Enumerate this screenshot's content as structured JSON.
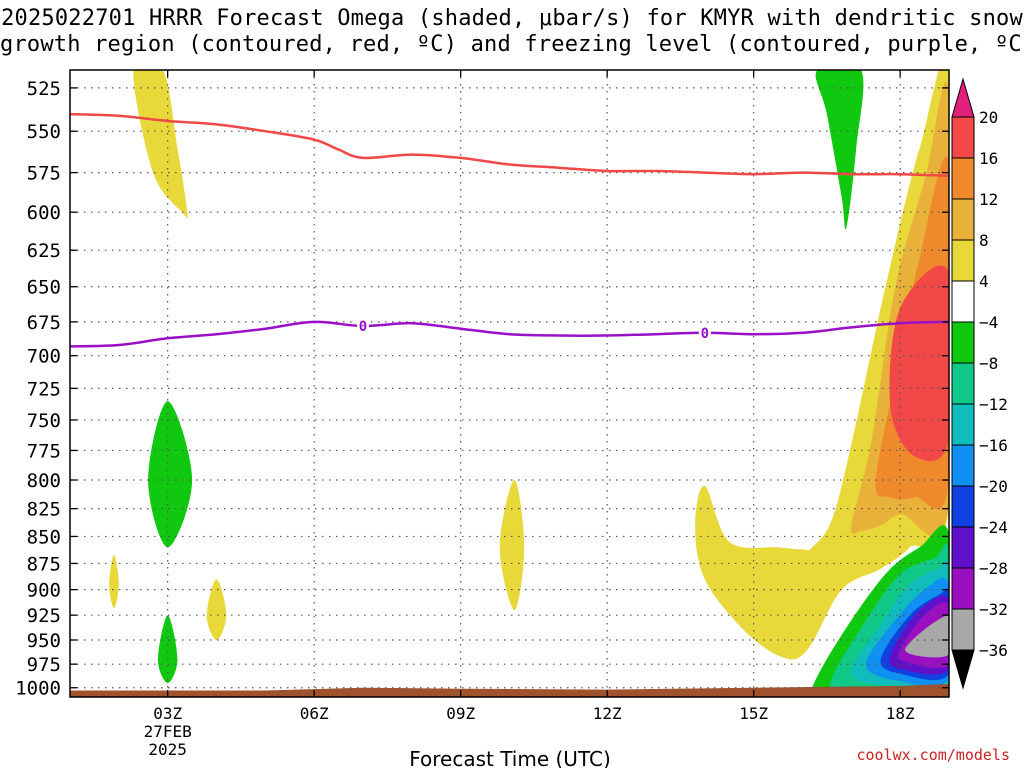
{
  "title_line1": "2025022701 HRRR Forecast Omega (shaded, μbar/s) for KMYR with dendritic snow",
  "title_line2": "growth region (contoured, red, ºC) and freezing level (contoured, purple, ºC)",
  "credit": "coolwx.com/models",
  "chart_data": {
    "type": "heatmap",
    "title": "2025022701 HRRR Forecast Omega (shaded, μbar/s) for KMYR with dendritic snow growth region (contoured, red, ºC) and freezing level (contoured, purple, ºC)",
    "xlabel": "Forecast Time (UTC)",
    "ylabel": "",
    "x_range_hours_utc": [
      1,
      19
    ],
    "y_range_hpa": [
      1010,
      515
    ],
    "y_scale": "log",
    "grid": true,
    "x_ticks": [
      {
        "hour": 3,
        "label": "03Z",
        "sub": [
          "27FEB",
          "2025"
        ]
      },
      {
        "hour": 6,
        "label": "06Z"
      },
      {
        "hour": 9,
        "label": "09Z"
      },
      {
        "hour": 12,
        "label": "12Z"
      },
      {
        "hour": 15,
        "label": "15Z"
      },
      {
        "hour": 18,
        "label": "18Z"
      }
    ],
    "y_ticks": [
      525,
      550,
      575,
      600,
      625,
      650,
      675,
      700,
      725,
      750,
      775,
      800,
      825,
      850,
      875,
      900,
      925,
      950,
      975,
      1000
    ],
    "colorbar": {
      "levels": [
        20,
        16,
        12,
        8,
        4,
        -4,
        -8,
        -12,
        -16,
        -20,
        -24,
        -28,
        -32,
        -36
      ],
      "bins": [
        {
          "range": ">20",
          "color": "#e0207a"
        },
        {
          "range": "16 to 20",
          "color": "#f24848"
        },
        {
          "range": "12 to 16",
          "color": "#ee8a2c"
        },
        {
          "range": "8 to 12",
          "color": "#e8b23a"
        },
        {
          "range": "4 to 8",
          "color": "#e8d83a"
        },
        {
          "range": "-4 to 4",
          "color": "#ffffff"
        },
        {
          "range": "-8 to -4",
          "color": "#10c810"
        },
        {
          "range": "-12 to -8",
          "color": "#10c888"
        },
        {
          "range": "-16 to -12",
          "color": "#10bcbc"
        },
        {
          "range": "-20 to -16",
          "color": "#1090f0"
        },
        {
          "range": "-24 to -20",
          "color": "#1040e0"
        },
        {
          "range": "-28 to -24",
          "color": "#6010c8"
        },
        {
          "range": "-32 to -28",
          "color": "#9a10c0"
        },
        {
          "range": "-36 to -32",
          "color": "#a8a8a8"
        },
        {
          "range": "<-36",
          "color": "#000000"
        }
      ]
    },
    "dgz_contour_top_red": {
      "color": "#f24848",
      "hours": [
        1,
        2,
        3,
        4,
        5,
        6,
        6.5,
        7,
        8,
        9,
        10,
        11,
        12,
        13,
        14,
        15,
        16,
        17,
        18,
        19
      ],
      "pressure_hpa": [
        540,
        541,
        544,
        546,
        550,
        555,
        561,
        566,
        564,
        566,
        570,
        572,
        574,
        574,
        575,
        576,
        575,
        576,
        576,
        577
      ]
    },
    "freezing_level_purple": {
      "color": "#9a10c8",
      "label": "0",
      "hours": [
        1,
        2,
        3,
        4,
        5,
        6,
        7,
        8,
        9,
        10,
        11,
        12,
        13,
        14,
        15,
        16,
        17,
        18,
        19
      ],
      "pressure_hpa": [
        693,
        692,
        687,
        684,
        680,
        675,
        678,
        676,
        680,
        684,
        685,
        685,
        684,
        683,
        684,
        683,
        679,
        676,
        675
      ]
    },
    "shaded_regions": [
      {
        "bin": "4 to 8",
        "hours": [
          2.3,
          2.9,
          3.2,
          3.4,
          3.3,
          2.7,
          2.3
        ],
        "pressure_hpa": [
          515,
          515,
          560,
          600,
          600,
          575,
          515
        ]
      },
      {
        "bin": "-8 to -4",
        "hours": [
          2.6,
          3.0,
          3.5,
          3.0,
          2.6
        ],
        "pressure_hpa": [
          800,
          735,
          800,
          860,
          800
        ]
      },
      {
        "bin": "4 to 8",
        "hours": [
          1.8,
          1.9,
          2.0,
          1.9,
          1.8
        ],
        "pressure_hpa": [
          895,
          867,
          895,
          918,
          895
        ]
      },
      {
        "bin": "4 to 8",
        "hours": [
          3.8,
          4.0,
          4.2,
          4.0,
          3.8
        ],
        "pressure_hpa": [
          925,
          890,
          925,
          950,
          925
        ]
      },
      {
        "bin": "-8 to -4",
        "hours": [
          2.8,
          3.0,
          3.2,
          3.0,
          2.8
        ],
        "pressure_hpa": [
          970,
          925,
          970,
          995,
          970
        ]
      },
      {
        "bin": "4 to 8",
        "hours": [
          9.8,
          10.1,
          10.3,
          10.1,
          9.8
        ],
        "pressure_hpa": [
          860,
          800,
          860,
          920,
          860
        ]
      },
      {
        "bin": "-8 to -4",
        "hours": [
          16.3,
          17.2,
          17.1,
          16.9,
          16.8,
          16.5,
          16.3
        ],
        "pressure_hpa": [
          515,
          515,
          560,
          610,
          590,
          540,
          515
        ]
      },
      {
        "bin": "4 to 8",
        "hours": [
          13.8,
          14.0,
          14.5,
          15.5,
          16.0,
          16.2,
          16.6,
          17.0,
          17.7,
          18.4,
          19.0,
          19.0,
          18.2,
          17.6,
          16.8,
          16.1,
          15.6,
          14.8,
          14.0,
          13.8
        ],
        "pressure_hpa": [
          840,
          805,
          855,
          860,
          862,
          860,
          835,
          770,
          650,
          560,
          520,
          820,
          860,
          880,
          900,
          960,
          968,
          940,
          890,
          840
        ]
      },
      {
        "bin": "8 to 12",
        "hours": [
          17.0,
          17.4,
          17.9,
          18.5,
          19.0,
          19.0,
          18.0,
          17.6,
          17.2,
          17.0
        ],
        "pressure_hpa": [
          840,
          770,
          650,
          580,
          530,
          820,
          830,
          840,
          845,
          840
        ]
      },
      {
        "bin": "12 to 16",
        "hours": [
          17.5,
          18.0,
          18.4,
          19.0,
          19.0,
          18.3,
          17.8,
          17.5
        ],
        "pressure_hpa": [
          800,
          700,
          630,
          570,
          800,
          815,
          815,
          800
        ]
      },
      {
        "bin": "16 to 20",
        "hours": [
          17.8,
          18.0,
          19.0,
          19.0,
          18.3,
          17.8
        ],
        "pressure_hpa": [
          740,
          665,
          640,
          765,
          780,
          740
        ]
      },
      {
        "bin": "-8 to -4",
        "hours": [
          16.2,
          16.8,
          17.7,
          18.4,
          19.0,
          19.0,
          18.0,
          16.4,
          16.2
        ],
        "pressure_hpa": [
          1000,
          945,
          885,
          860,
          848,
          1005,
          1010,
          1008,
          1000
        ]
      },
      {
        "bin": "-12 to -8",
        "hours": [
          16.6,
          17.3,
          18.0,
          18.7,
          19.0,
          19.0,
          17.8,
          16.8,
          16.6
        ],
        "pressure_hpa": [
          990,
          930,
          885,
          870,
          865,
          1000,
          1005,
          1002,
          990
        ]
      },
      {
        "bin": "-16 to -12",
        "hours": [
          17.0,
          17.6,
          18.2,
          18.8,
          19.0,
          19.0,
          17.9,
          17.0
        ],
        "pressure_hpa": [
          985,
          935,
          895,
          880,
          880,
          995,
          998,
          985
        ]
      },
      {
        "bin": "-20 to -16",
        "hours": [
          17.3,
          17.9,
          18.5,
          19.0,
          19.0,
          17.9,
          17.3
        ],
        "pressure_hpa": [
          975,
          930,
          900,
          895,
          990,
          992,
          975
        ]
      },
      {
        "bin": "-24 to -20",
        "hours": [
          17.6,
          18.2,
          18.8,
          19.0,
          19.0,
          18.0,
          17.6
        ],
        "pressure_hpa": [
          970,
          925,
          905,
          905,
          985,
          985,
          970
        ]
      },
      {
        "bin": "-28 to -24",
        "hours": [
          17.8,
          18.4,
          19.0,
          19.0,
          18.0,
          17.8
        ],
        "pressure_hpa": [
          965,
          920,
          910,
          980,
          980,
          965
        ]
      },
      {
        "bin": "-32 to -28",
        "hours": [
          18.0,
          18.5,
          19.0,
          19.0,
          18.1,
          18.0
        ],
        "pressure_hpa": [
          960,
          925,
          915,
          975,
          972,
          960
        ]
      },
      {
        "bin": "-36 to -32",
        "hours": [
          18.1,
          19.0,
          19.0,
          18.1
        ],
        "pressure_hpa": [
          960,
          925,
          965,
          960
        ]
      }
    ],
    "terrain_color": "#a0522d"
  }
}
